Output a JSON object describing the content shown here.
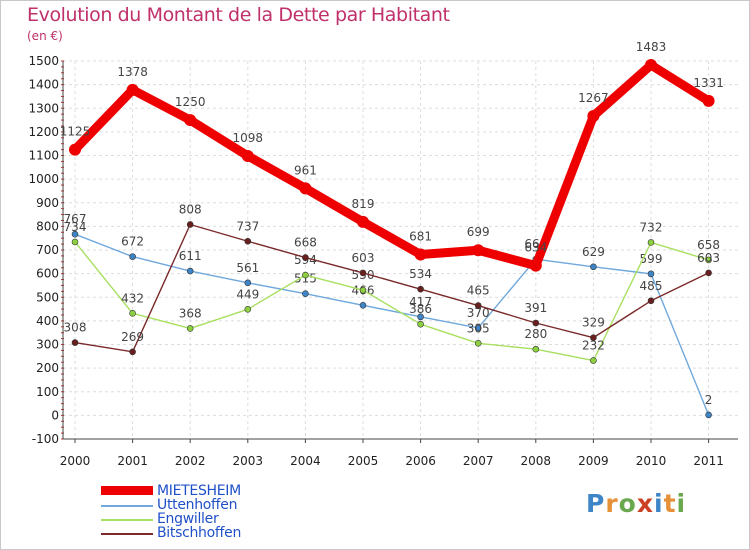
{
  "header": {
    "title": "Evolution du Montant de la Dette par Habitant",
    "unit": "(en €)"
  },
  "chart_data": {
    "type": "line",
    "x": [
      "2000",
      "2001",
      "2002",
      "2003",
      "2004",
      "2005",
      "2006",
      "2007",
      "2008",
      "2009",
      "2010",
      "2011"
    ],
    "ylim": [
      -100,
      1500
    ],
    "yticks": [
      -100,
      0,
      100,
      200,
      300,
      400,
      500,
      600,
      700,
      800,
      900,
      1000,
      1100,
      1200,
      1300,
      1400,
      1500
    ],
    "grid": true,
    "legend_position": "bottom-left",
    "series": [
      {
        "name": "Uttenhoffen",
        "color": "#6fa8dc",
        "marker": "#3d85c6",
        "values": [
          767,
          672,
          611,
          561,
          515,
          466,
          417,
          370,
          661,
          629,
          599,
          2
        ],
        "labels": [
          "767",
          "672",
          "611",
          "561",
          "515",
          "466",
          "417",
          "370",
          "661",
          "629",
          "599",
          "2"
        ]
      },
      {
        "name": "Engwiller",
        "color": "#a8e060",
        "marker": "#8cd040",
        "values": [
          734,
          432,
          368,
          449,
          594,
          530,
          386,
          305,
          280,
          232,
          732,
          658
        ],
        "labels": [
          "734",
          "432",
          "368",
          "449",
          "594",
          "530",
          "386",
          "305",
          "280",
          "232",
          "732",
          "658"
        ]
      },
      {
        "name": "Bitschhoffen",
        "color": "#7a2a2a",
        "marker": "#6a1f1f",
        "values": [
          308,
          269,
          808,
          737,
          668,
          603,
          534,
          465,
          391,
          329,
          485,
          603
        ],
        "labels": [
          "308",
          "269",
          "808",
          "737",
          "668",
          "603",
          "534",
          "465",
          "391",
          "329",
          "485",
          "603"
        ]
      },
      {
        "name": "MIETESHEIM",
        "color": "#ee0000",
        "marker": "#ee0000",
        "values": [
          1125,
          1378,
          1250,
          1098,
          961,
          819,
          681,
          699,
          634,
          1267,
          1483,
          1331
        ],
        "labels": [
          "1125",
          "1378",
          "1250",
          "1098",
          "961",
          "819",
          "681",
          "699",
          "634",
          "1267",
          "1483",
          "1331"
        ]
      }
    ]
  },
  "legend": {
    "items": [
      {
        "label": "MIETESHEIM",
        "color": "#ee0000"
      },
      {
        "label": "Uttenhoffen",
        "color": "#6fa8dc"
      },
      {
        "label": "Engwiller",
        "color": "#a8e060"
      },
      {
        "label": "Bitschhoffen",
        "color": "#7a2a2a"
      }
    ]
  },
  "logo": {
    "letters": [
      "P",
      "r",
      "o",
      "x",
      "i",
      "t",
      "i"
    ],
    "colors": [
      "#3d85c6",
      "#e69138",
      "#6aa84f",
      "#cc4125",
      "#3d85c6",
      "#e69138",
      "#6aa84f"
    ]
  }
}
